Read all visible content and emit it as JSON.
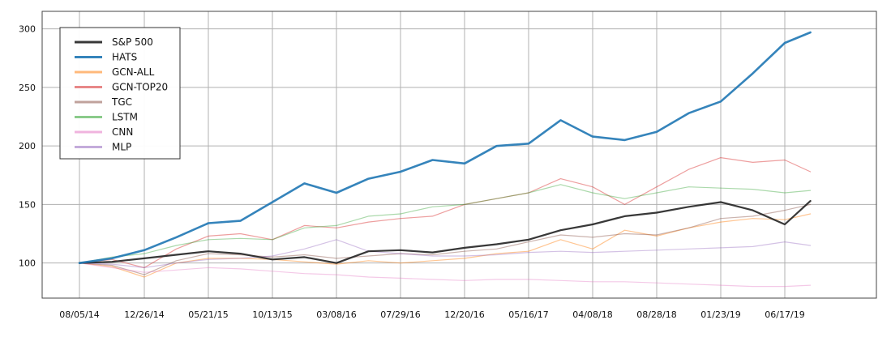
{
  "chart_data": {
    "type": "line",
    "title": "",
    "xlabel": "",
    "ylabel": "",
    "x_ticks": [
      "08/05/14",
      "12/26/14",
      "05/21/15",
      "10/13/15",
      "03/08/16",
      "07/29/16",
      "12/20/16",
      "05/16/17",
      "04/08/18",
      "08/28/18",
      "01/23/19",
      "06/17/19"
    ],
    "y_ticks": [
      100,
      150,
      200,
      250,
      300
    ],
    "ylim": [
      70,
      315
    ],
    "grid": true,
    "legend_position": "top-left",
    "x": [
      0,
      0.5,
      1,
      1.5,
      2,
      2.5,
      3,
      3.5,
      4,
      4.5,
      5,
      5.5,
      6,
      6.5,
      7,
      7.5,
      8,
      8.5,
      9,
      9.5,
      10,
      10.5,
      11,
      11.4
    ],
    "series": [
      {
        "name": "S&P 500",
        "color": "#222222",
        "width": 2.2,
        "opacity": 0.9,
        "values": [
          100,
          101,
          104,
          107,
          110,
          108,
          103,
          105,
          100,
          110,
          111,
          109,
          113,
          116,
          120,
          128,
          133,
          140,
          143,
          148,
          152,
          145,
          133,
          153
        ]
      },
      {
        "name": "HATS",
        "color": "#1f77b4",
        "width": 2.6,
        "opacity": 0.9,
        "values": [
          100,
          104,
          111,
          122,
          134,
          136,
          152,
          168,
          160,
          172,
          178,
          188,
          185,
          200,
          202,
          222,
          208,
          205,
          212,
          228,
          238,
          262,
          288,
          297
        ]
      },
      {
        "name": "GCN-ALL",
        "color": "#ff7f0e",
        "width": 1.2,
        "opacity": 0.45,
        "values": [
          100,
          97,
          88,
          100,
          104,
          104,
          103,
          101,
          99,
          102,
          100,
          102,
          104,
          108,
          110,
          120,
          112,
          128,
          123,
          130,
          135,
          138,
          137,
          142
        ]
      },
      {
        "name": "GCN-TOP20",
        "color": "#d62728",
        "width": 1.2,
        "opacity": 0.45,
        "values": [
          100,
          103,
          96,
          112,
          123,
          125,
          120,
          132,
          130,
          135,
          138,
          140,
          150,
          155,
          160,
          172,
          165,
          150,
          165,
          180,
          190,
          186,
          188,
          178
        ]
      },
      {
        "name": "TGC",
        "color": "#8c564b",
        "width": 1.2,
        "opacity": 0.45,
        "values": [
          100,
          98,
          90,
          102,
          108,
          107,
          105,
          107,
          104,
          106,
          108,
          107,
          110,
          112,
          118,
          124,
          122,
          125,
          124,
          130,
          138,
          140,
          145,
          150
        ]
      },
      {
        "name": "LSTM",
        "color": "#2ca02c",
        "width": 1.2,
        "opacity": 0.4,
        "values": [
          100,
          105,
          108,
          115,
          120,
          121,
          120,
          130,
          132,
          140,
          142,
          148,
          150,
          155,
          160,
          167,
          160,
          155,
          160,
          165,
          164,
          163,
          160,
          162
        ]
      },
      {
        "name": "CNN",
        "color": "#e377c2",
        "width": 1.2,
        "opacity": 0.4,
        "values": [
          100,
          96,
          92,
          94,
          96,
          95,
          93,
          91,
          90,
          88,
          87,
          86,
          85,
          86,
          86,
          85,
          84,
          84,
          83,
          82,
          81,
          80,
          80,
          81
        ]
      },
      {
        "name": "MLP",
        "color": "#9467bd",
        "width": 1.2,
        "opacity": 0.4,
        "values": [
          100,
          99,
          96,
          100,
          103,
          104,
          106,
          112,
          120,
          110,
          108,
          106,
          106,
          107,
          109,
          110,
          109,
          110,
          111,
          112,
          113,
          114,
          118,
          115
        ]
      }
    ]
  }
}
